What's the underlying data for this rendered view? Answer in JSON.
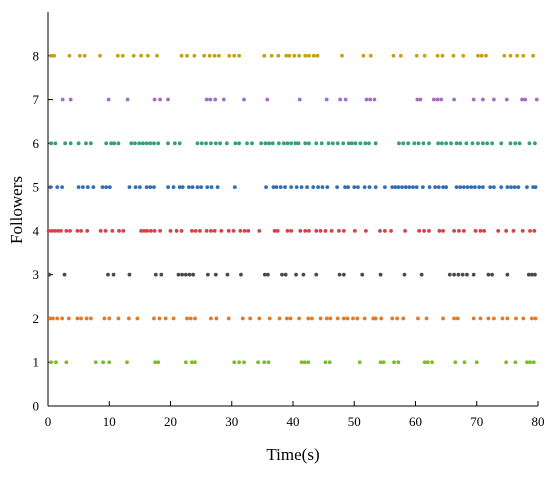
{
  "chart_data": {
    "type": "scatter",
    "title": "",
    "xlabel": "Time(s)",
    "ylabel": "Followers",
    "xlim": [
      0,
      80
    ],
    "ylim": [
      0,
      9
    ],
    "x_ticks": [
      0,
      10,
      20,
      30,
      40,
      50,
      60,
      70,
      80
    ],
    "y_ticks": [
      0,
      1,
      2,
      3,
      4,
      5,
      6,
      7,
      8
    ],
    "grid": false,
    "legend": "none",
    "series": [
      {
        "color": "#7cbd27",
        "y": 1,
        "x": [
          0.5,
          1.3,
          3.0,
          7.8,
          9.0,
          10.0,
          12.9,
          17.5,
          18.0,
          22.5,
          23.5,
          24.0,
          30.4,
          31.2,
          32.0,
          34.3,
          35.3,
          36.0,
          41.4,
          41.9,
          42.5,
          45.3,
          46.0,
          50.9,
          54.3,
          54.8,
          56.5,
          57.2,
          61.5,
          62.0,
          62.7,
          66.5,
          68.0,
          70.0,
          74.8,
          76.3,
          78.2,
          78.7,
          79.3
        ]
      },
      {
        "color": "#e07b29",
        "y": 2,
        "x": [
          0.3,
          0.8,
          1.5,
          2.3,
          3.4,
          4.8,
          5.4,
          6.3,
          7.0,
          9.2,
          10.0,
          11.5,
          13.2,
          14.6,
          17.3,
          18.2,
          19.2,
          20.5,
          22.7,
          23.3,
          24.0,
          26.6,
          27.5,
          29.5,
          31.8,
          33.0,
          34.5,
          36.2,
          37.8,
          39.0,
          39.6,
          41.0,
          42.5,
          43.1,
          44.5,
          45.5,
          46.1,
          47.3,
          48.3,
          48.9,
          49.8,
          50.5,
          51.7,
          53.1,
          53.5,
          54.4,
          56.2,
          57.0,
          58.0,
          60.4,
          61.8,
          64.5,
          66.3,
          66.9,
          69.5,
          70.6,
          71.9,
          72.8,
          74.2,
          75.0,
          76.4,
          77.6,
          79.0,
          79.6
        ]
      },
      {
        "color": "#4a4a4a",
        "y": 3,
        "x": [
          0.2,
          2.7,
          9.8,
          10.7,
          13.3,
          17.6,
          18.5,
          21.3,
          21.9,
          22.5,
          23.1,
          23.7,
          26.1,
          27.4,
          29.3,
          31.5,
          35.4,
          35.9,
          38.2,
          38.8,
          40.5,
          41.7,
          43.8,
          47.6,
          48.3,
          51.3,
          54.3,
          58.2,
          61.0,
          65.6,
          66.3,
          67.0,
          67.7,
          68.4,
          69.5,
          71.9,
          72.5,
          75.0,
          78.5,
          79.0,
          79.5
        ]
      },
      {
        "color": "#d94040",
        "y": 4,
        "x": [
          0.1,
          0.6,
          1.1,
          1.6,
          2.1,
          3.0,
          3.6,
          4.8,
          5.4,
          6.4,
          8.6,
          9.4,
          10.5,
          11.6,
          12.3,
          15.2,
          15.7,
          16.2,
          16.8,
          17.4,
          18.3,
          20.0,
          21.0,
          21.8,
          23.5,
          24.1,
          24.8,
          25.9,
          26.6,
          27.2,
          28.3,
          29.5,
          30.3,
          31.4,
          32.1,
          32.7,
          34.5,
          37.0,
          37.5,
          39.1,
          39.7,
          41.2,
          42.0,
          42.6,
          43.8,
          44.5,
          45.3,
          46.3,
          47.5,
          48.3,
          50.1,
          51.9,
          54.2,
          55.0,
          56.0,
          58.3,
          60.6,
          61.4,
          62.2,
          63.9,
          64.5,
          66.3,
          67.1,
          67.9,
          69.8,
          70.6,
          71.2,
          73.5,
          74.8,
          76.0,
          77.5,
          78.7,
          79.4
        ]
      },
      {
        "color": "#2f6fb8",
        "y": 5,
        "x": [
          0.4,
          1.5,
          2.3,
          5.0,
          5.7,
          6.5,
          7.4,
          8.9,
          9.5,
          10.1,
          13.3,
          14.3,
          15.0,
          16.1,
          16.7,
          17.3,
          19.6,
          20.5,
          21.5,
          22.0,
          23.0,
          23.6,
          24.4,
          25.0,
          26.0,
          26.7,
          27.7,
          30.5,
          35.6,
          36.8,
          37.3,
          38.0,
          38.7,
          39.7,
          40.6,
          41.4,
          42.3,
          43.3,
          44.1,
          44.8,
          45.6,
          47.2,
          48.5,
          49.0,
          50.0,
          50.6,
          51.7,
          52.5,
          53.5,
          55.0,
          56.2,
          56.7,
          57.2,
          57.8,
          58.4,
          59.0,
          59.6,
          60.2,
          61.2,
          62.3,
          63.2,
          63.8,
          64.5,
          65.0,
          66.7,
          67.3,
          67.9,
          68.5,
          69.1,
          69.7,
          70.4,
          71.0,
          72.2,
          72.8,
          74.0,
          75.0,
          75.6,
          76.2,
          76.8,
          78.2,
          79.2,
          79.6
        ]
      },
      {
        "color": "#34a07a",
        "y": 6,
        "x": [
          0.5,
          1.2,
          2.8,
          3.7,
          5.0,
          6.2,
          7.0,
          9.5,
          10.3,
          10.8,
          11.5,
          13.6,
          14.2,
          14.9,
          15.5,
          16.1,
          16.7,
          17.3,
          18.0,
          19.6,
          20.7,
          21.5,
          24.4,
          25.1,
          25.8,
          26.6,
          27.4,
          28.1,
          29.2,
          30.6,
          31.2,
          32.5,
          33.3,
          34.8,
          35.5,
          36.1,
          36.7,
          37.7,
          38.5,
          39.1,
          39.7,
          40.4,
          40.9,
          42.0,
          42.6,
          43.8,
          44.7,
          45.8,
          46.5,
          47.3,
          48.2,
          49.1,
          49.6,
          50.2,
          51.0,
          51.8,
          52.4,
          53.5,
          57.3,
          58.0,
          58.8,
          59.8,
          60.5,
          61.3,
          62.2,
          63.7,
          64.3,
          65.0,
          65.8,
          66.7,
          67.3,
          68.3,
          69.3,
          70.2,
          71.0,
          71.7,
          72.5,
          74.0,
          75.5,
          76.3,
          77.0,
          78.6,
          79.5
        ]
      },
      {
        "color": "#a56cc1",
        "y": 7,
        "x": [
          2.4,
          3.7,
          9.9,
          13.0,
          17.4,
          18.3,
          19.6,
          25.9,
          26.5,
          27.3,
          28.7,
          32.0,
          35.8,
          41.1,
          45.5,
          47.7,
          48.6,
          52.0,
          52.6,
          53.3,
          60.3,
          60.8,
          63.0,
          63.6,
          64.2,
          66.3,
          69.5,
          71.0,
          72.8,
          74.9,
          77.4,
          77.9,
          79.8
        ]
      },
      {
        "color": "#c9a013",
        "y": 8,
        "x": [
          0.5,
          1.0,
          3.5,
          5.2,
          6.0,
          8.5,
          11.4,
          12.2,
          14.0,
          15.2,
          16.3,
          17.8,
          21.8,
          22.7,
          23.9,
          25.5,
          26.4,
          27.2,
          27.9,
          29.6,
          30.4,
          31.2,
          35.3,
          36.5,
          37.6,
          38.9,
          39.4,
          40.2,
          41.0,
          42.0,
          42.6,
          43.4,
          44.0,
          48.0,
          51.5,
          52.7,
          56.4,
          57.6,
          60.2,
          61.5,
          63.6,
          64.4,
          66.2,
          67.8,
          70.2,
          70.8,
          71.5,
          74.5,
          75.5,
          76.6,
          77.6,
          79.2
        ]
      }
    ]
  }
}
